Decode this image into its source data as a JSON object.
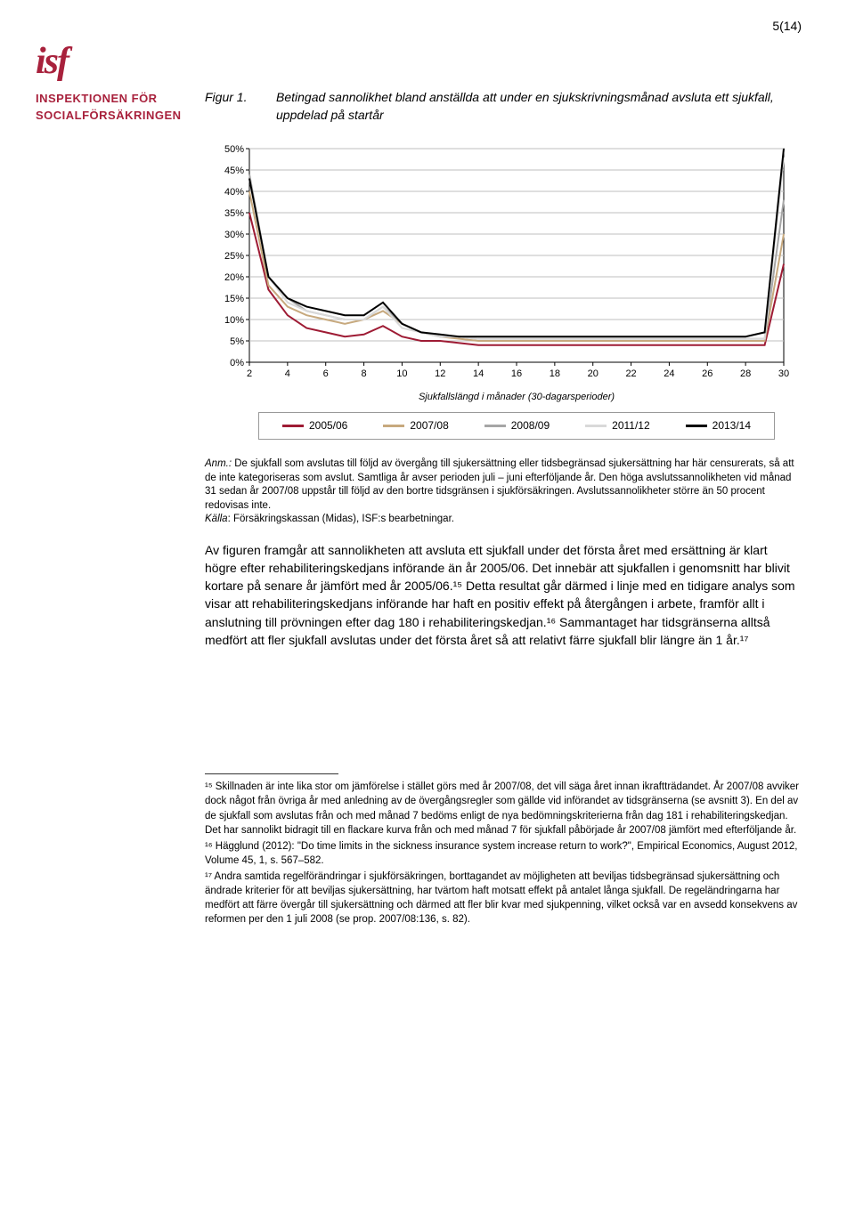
{
  "page_number": "5(14)",
  "logo": {
    "short": "isf",
    "line1": "INSPEKTIONEN FÖR",
    "line2": "SOCIALFÖRSÄKRINGEN"
  },
  "figure": {
    "label": "Figur 1.",
    "caption": "Betingad sannolikhet bland anställda att under en sjukskrivningsmånad avsluta ett sjukfall, uppdelad på startår"
  },
  "chart": {
    "type": "line",
    "x_label": "Sjukfallslängd i månader (30-dagarsperioder)",
    "x_ticks": [
      "2",
      "4",
      "6",
      "8",
      "10",
      "12",
      "14",
      "16",
      "18",
      "20",
      "22",
      "24",
      "26",
      "28",
      "30"
    ],
    "y_ticks": [
      "0%",
      "5%",
      "10%",
      "15%",
      "20%",
      "25%",
      "30%",
      "35%",
      "40%",
      "45%",
      "50%"
    ],
    "ylim": [
      0,
      50
    ],
    "xlim": [
      2,
      30
    ],
    "background_color": "#ffffff",
    "grid_color": "#bfbfbf",
    "axis_color": "#000000",
    "label_fontsize": 11,
    "tick_fontsize": 11,
    "line_width": 2,
    "series": [
      {
        "name": "2005/06",
        "color": "#9e1b34",
        "y": [
          35,
          17,
          11,
          8,
          7,
          6,
          6.5,
          8.5,
          6,
          5,
          5,
          4.5,
          4,
          4,
          4,
          4,
          4,
          4,
          4,
          4,
          4,
          4,
          4,
          4,
          4,
          4,
          4,
          4,
          23
        ]
      },
      {
        "name": "2007/08",
        "color": "#c7a97e",
        "y": [
          40,
          18,
          13,
          11,
          10,
          9,
          10,
          12,
          9,
          7,
          6,
          5.5,
          5,
          5,
          5,
          5,
          5,
          5,
          5,
          5,
          5,
          5,
          5,
          5,
          5,
          5,
          5,
          5,
          30
        ]
      },
      {
        "name": "2008/09",
        "color": "#a6a6a6",
        "y": [
          44,
          20,
          15,
          12,
          11,
          10,
          10,
          13,
          9,
          7,
          6,
          6,
          5.5,
          5.5,
          5.5,
          5.5,
          5.5,
          5.5,
          5.5,
          5.5,
          5.5,
          5.5,
          5.5,
          5.5,
          5.5,
          5.5,
          5.5,
          5.5,
          38
        ]
      },
      {
        "name": "2011/12",
        "color": "#d9d9d9",
        "y": [
          43,
          20,
          14,
          12,
          11,
          10,
          10,
          13,
          8,
          7,
          6,
          6,
          5.5,
          5.5,
          5.5,
          5.5,
          5.5,
          5.5,
          5.5,
          5.5,
          5.5,
          5.5,
          5.5,
          5.5,
          5.5,
          5.5,
          5.5,
          5.5,
          48
        ]
      },
      {
        "name": "2013/14",
        "color": "#000000",
        "y": [
          43,
          20,
          15,
          13,
          12,
          11,
          11,
          14,
          9,
          7,
          6.5,
          6,
          6,
          6,
          6,
          6,
          6,
          6,
          6,
          6,
          6,
          6,
          6,
          6,
          6,
          6,
          6,
          7,
          50
        ]
      }
    ]
  },
  "note": {
    "anm_label": "Anm.:",
    "anm_text": "De sjukfall som avslutas till följd av övergång till sjukersättning eller tidsbegränsad sjukersättning har här censurerats, så att de inte kategoriseras som avslut. Samtliga år avser perioden juli – juni efterföljande år. Den höga avslutssannolikheten vid månad 31 sedan år 2007/08 uppstår till följd av den bortre tidsgränsen i sjukförsäkringen. Avslutssannolikheter större än 50 procent redovisas inte.",
    "kalla_label": "Källa",
    "kalla_text": ": Försäkringskassan (Midas), ISF:s bearbetningar."
  },
  "body": "Av figuren framgår att sannolikheten att avsluta ett sjukfall under det första året med ersättning är klart högre efter rehabiliteringskedjans införande än år 2005/06. Det innebär att sjukfallen i genomsnitt har blivit kortare på senare år jämfört med år 2005/06.¹⁵ Detta resultat går därmed i linje med en tidigare analys som visar att rehabiliteringskedjans införande har haft en positiv effekt på återgången i arbete, framför allt i anslutning till prövningen efter dag 180 i rehabiliteringskedjan.¹⁶ Sammantaget har tidsgränserna alltså medfört att fler sjukfall avslutas under det första året så att relativt färre sjukfall blir längre än 1 år.¹⁷",
  "footnotes": {
    "f15": "¹⁵ Skillnaden är inte lika stor om jämförelse i stället görs med år 2007/08, det vill säga året innan ikraftträdandet. År 2007/08 avviker dock något från övriga år med anledning av de övergångsregler som gällde vid införandet av tidsgränserna (se avsnitt 3). En del av de sjukfall som avslutas från och med månad 7 bedöms enligt de nya bedömningskriterierna från dag 181 i rehabiliteringskedjan. Det har sannolikt bidragit till en flackare kurva från och med månad 7 för sjukfall påbörjade år 2007/08 jämfört med efterföljande år.",
    "f16_a": "¹⁶ Hägglund (2012): \"Do time limits in the sickness insurance system increase return to work?\", ",
    "f16_em": "Empirical Economics",
    "f16_b": ", August 2012, Volume 45, 1, s. 567–582.",
    "f17": "¹⁷ Andra samtida regelförändringar i sjukförsäkringen, borttagandet av möjligheten att beviljas tidsbegränsad sjukersättning och ändrade kriterier för att beviljas sjukersättning, har tvärtom haft motsatt effekt på antalet långa sjukfall. De regeländringarna har medfört att färre övergår till sjukersättning och därmed att fler blir kvar med sjukpenning, vilket också var en avsedd konsekvens av reformen per den 1 juli 2008 (se prop. 2007/08:136, s. 82)."
  }
}
